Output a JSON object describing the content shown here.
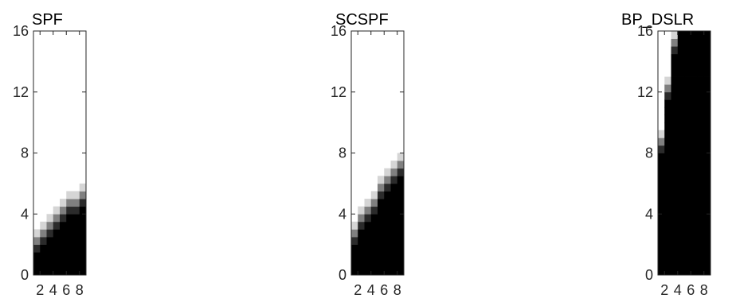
{
  "chart_data": [
    {
      "type": "heatmap",
      "title": "SPF",
      "xlabel": "",
      "ylabel": "",
      "x_ticks": [
        2,
        4,
        6,
        8
      ],
      "y_ticks": [
        0,
        4,
        8,
        12,
        16
      ],
      "xlim": [
        1,
        9
      ],
      "ylim": [
        0,
        16
      ],
      "rows": 32,
      "cols": 8,
      "boundaries": [
        1.5,
        2.0,
        2.5,
        3.0,
        3.5,
        4.0,
        4.0,
        4.5
      ],
      "transition_width": 1.5,
      "grid": false
    },
    {
      "type": "heatmap",
      "title": "SCSPF",
      "xlabel": "",
      "ylabel": "",
      "x_ticks": [
        2,
        4,
        6,
        8
      ],
      "y_ticks": [
        0,
        4,
        8,
        12,
        16
      ],
      "xlim": [
        1,
        9
      ],
      "ylim": [
        0,
        16
      ],
      "rows": 32,
      "cols": 8,
      "boundaries": [
        2.0,
        3.0,
        3.5,
        4.0,
        5.0,
        5.5,
        6.0,
        6.5
      ],
      "transition_width": 1.5,
      "grid": false
    },
    {
      "type": "heatmap",
      "title": "BP_DSLR",
      "xlabel": "",
      "ylabel": "",
      "x_ticks": [
        2,
        4,
        6,
        8
      ],
      "y_ticks": [
        0,
        4,
        8,
        12,
        16
      ],
      "xlim": [
        1,
        9
      ],
      "ylim": [
        0,
        16
      ],
      "rows": 32,
      "cols": 8,
      "boundaries": [
        8.0,
        11.5,
        14.5,
        16.0,
        16.0,
        16.0,
        16.0,
        16.0
      ],
      "transition_width": 1.5,
      "grid": false
    }
  ]
}
